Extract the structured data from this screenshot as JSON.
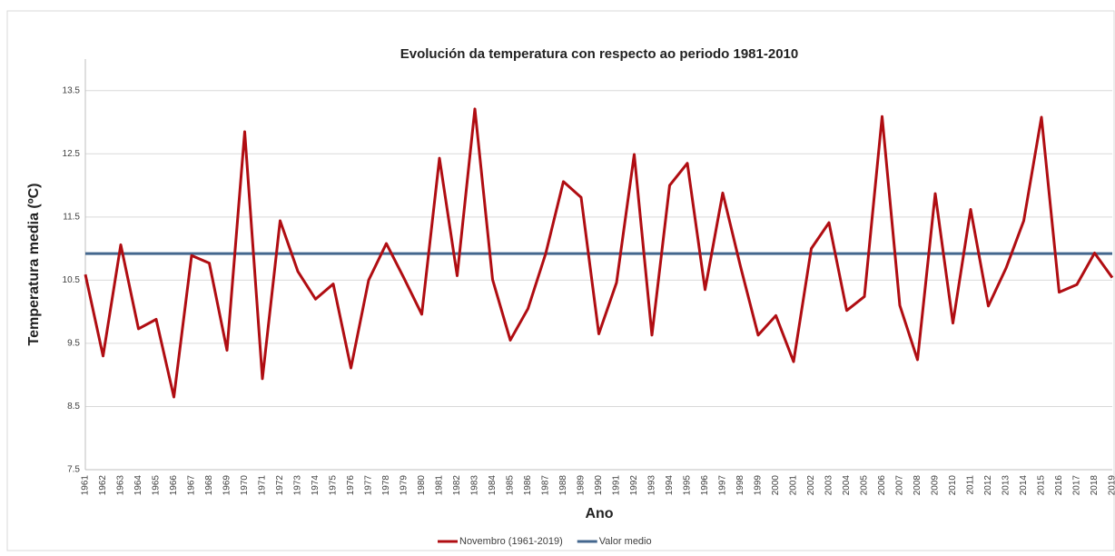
{
  "chart_data": {
    "type": "line",
    "title": "Evolución  da temperatura con respecto ao periodo 1981-2010",
    "x_label": "Ano",
    "y_label": "Temperatura media (ºC)",
    "x": [
      1961,
      1962,
      1963,
      1964,
      1965,
      1966,
      1967,
      1968,
      1969,
      1970,
      1971,
      1972,
      1973,
      1974,
      1975,
      1976,
      1977,
      1978,
      1979,
      1980,
      1981,
      1982,
      1983,
      1984,
      1985,
      1986,
      1987,
      1988,
      1989,
      1990,
      1991,
      1992,
      1993,
      1994,
      1995,
      1996,
      1997,
      1998,
      1999,
      2000,
      2001,
      2002,
      2003,
      2004,
      2005,
      2006,
      2007,
      2008,
      2009,
      2010,
      2011,
      2012,
      2013,
      2014,
      2015,
      2016,
      2017,
      2018,
      2019
    ],
    "xlim": [
      1961,
      2019
    ],
    "ylim": [
      7.5,
      14
    ],
    "yticks": [
      7.5,
      8.5,
      9.5,
      10.5,
      11.5,
      12.5,
      13.5
    ],
    "grid": true,
    "legend": "bottom",
    "series": [
      {
        "name": "Novembro (1961-2019)",
        "color": "#b00d12",
        "values": [
          10.59,
          9.3,
          11.06,
          9.73,
          9.88,
          8.65,
          10.89,
          10.77,
          9.39,
          12.85,
          8.94,
          11.44,
          10.64,
          10.2,
          10.44,
          9.11,
          10.5,
          11.08,
          10.53,
          9.96,
          12.43,
          10.57,
          13.21,
          10.51,
          9.55,
          10.05,
          10.92,
          12.06,
          11.81,
          9.65,
          10.46,
          12.49,
          9.63,
          12.0,
          12.35,
          10.35,
          11.88,
          10.72,
          9.63,
          9.94,
          9.21,
          11.0,
          11.41,
          10.02,
          10.24,
          13.09,
          10.1,
          9.24,
          11.87,
          9.82,
          11.62,
          10.09,
          10.69,
          11.44,
          13.08,
          10.31,
          10.43,
          10.93,
          10.54
        ]
      },
      {
        "name": "Valor medio",
        "color": "#44678e",
        "values": [
          10.92,
          10.92,
          10.92,
          10.92,
          10.92,
          10.92,
          10.92,
          10.92,
          10.92,
          10.92,
          10.92,
          10.92,
          10.92,
          10.92,
          10.92,
          10.92,
          10.92,
          10.92,
          10.92,
          10.92,
          10.92,
          10.92,
          10.92,
          10.92,
          10.92,
          10.92,
          10.92,
          10.92,
          10.92,
          10.92,
          10.92,
          10.92,
          10.92,
          10.92,
          10.92,
          10.92,
          10.92,
          10.92,
          10.92,
          10.92,
          10.92,
          10.92,
          10.92,
          10.92,
          10.92,
          10.92,
          10.92,
          10.92,
          10.92,
          10.92,
          10.92,
          10.92,
          10.92,
          10.92,
          10.92,
          10.92,
          10.92,
          10.92,
          10.92
        ]
      }
    ]
  }
}
